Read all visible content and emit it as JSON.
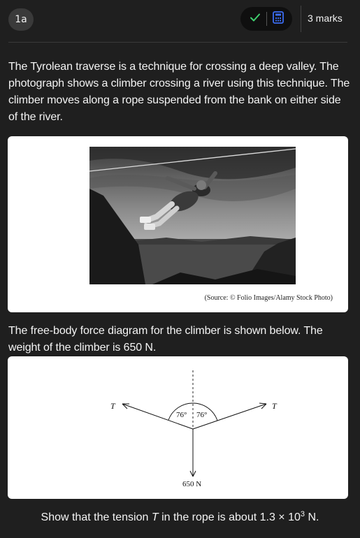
{
  "header": {
    "question_label": "1a",
    "check_icon": "check-icon",
    "calculator_icon": "calculator-icon",
    "marks_label": "3 marks"
  },
  "intro_text": "The Tyrolean traverse is a technique for crossing a deep valley. The photograph shows a climber crossing a river using this technique. The climber moves along a rope suspended from the bank on either side of the river.",
  "photo": {
    "source_caption": "(Source: © Folio Images/Alamy Stock Photo)"
  },
  "diagram_intro": "The free-body force diagram for the climber is shown below. The weight of the climber is 650 N.",
  "diagram": {
    "left_force_label": "T",
    "right_force_label": "T",
    "left_angle_label": "76°",
    "right_angle_label": "76°",
    "weight_label": "650 N"
  },
  "task": {
    "prefix": "Show that the tension ",
    "variable": "T",
    "middle": " in the rope is about 1.3 × 10",
    "exponent": "3",
    "suffix": " N."
  },
  "colors": {
    "background": "#1f1f1f",
    "check": "#3ecf6e",
    "calculator": "#3b6cf0"
  }
}
